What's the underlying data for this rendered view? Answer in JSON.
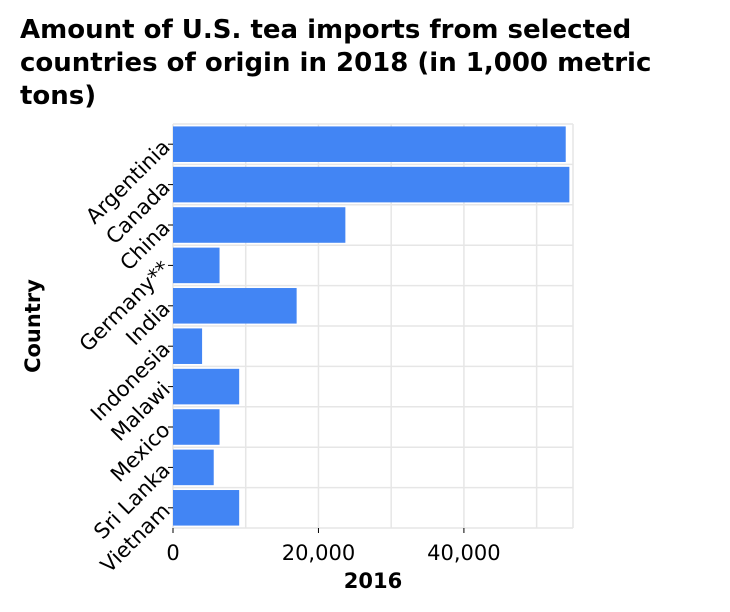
{
  "chart_data": {
    "type": "bar",
    "orientation": "horizontal",
    "title": "Amount of U.S. tea imports from selected countries of origin in 2018 (in 1,000 metric tons)",
    "xlabel": "2016",
    "ylabel": "Country",
    "categories": [
      "Argentinia",
      "Canada",
      "China",
      "Germany**",
      "India",
      "Indonesia",
      "Malawi",
      "Mexico",
      "Sri Lanka",
      "Vietnam"
    ],
    "values": [
      54000,
      54500,
      23700,
      6400,
      17000,
      4000,
      9100,
      6400,
      5600,
      9100
    ],
    "xlim": [
      0,
      55000
    ],
    "xticks": [
      0,
      20000,
      40000
    ],
    "xtick_labels": [
      "0",
      "20,000",
      "40,000"
    ],
    "grid": true,
    "bar_color": "#4285f4",
    "grid_color": "#e6e6e6"
  }
}
